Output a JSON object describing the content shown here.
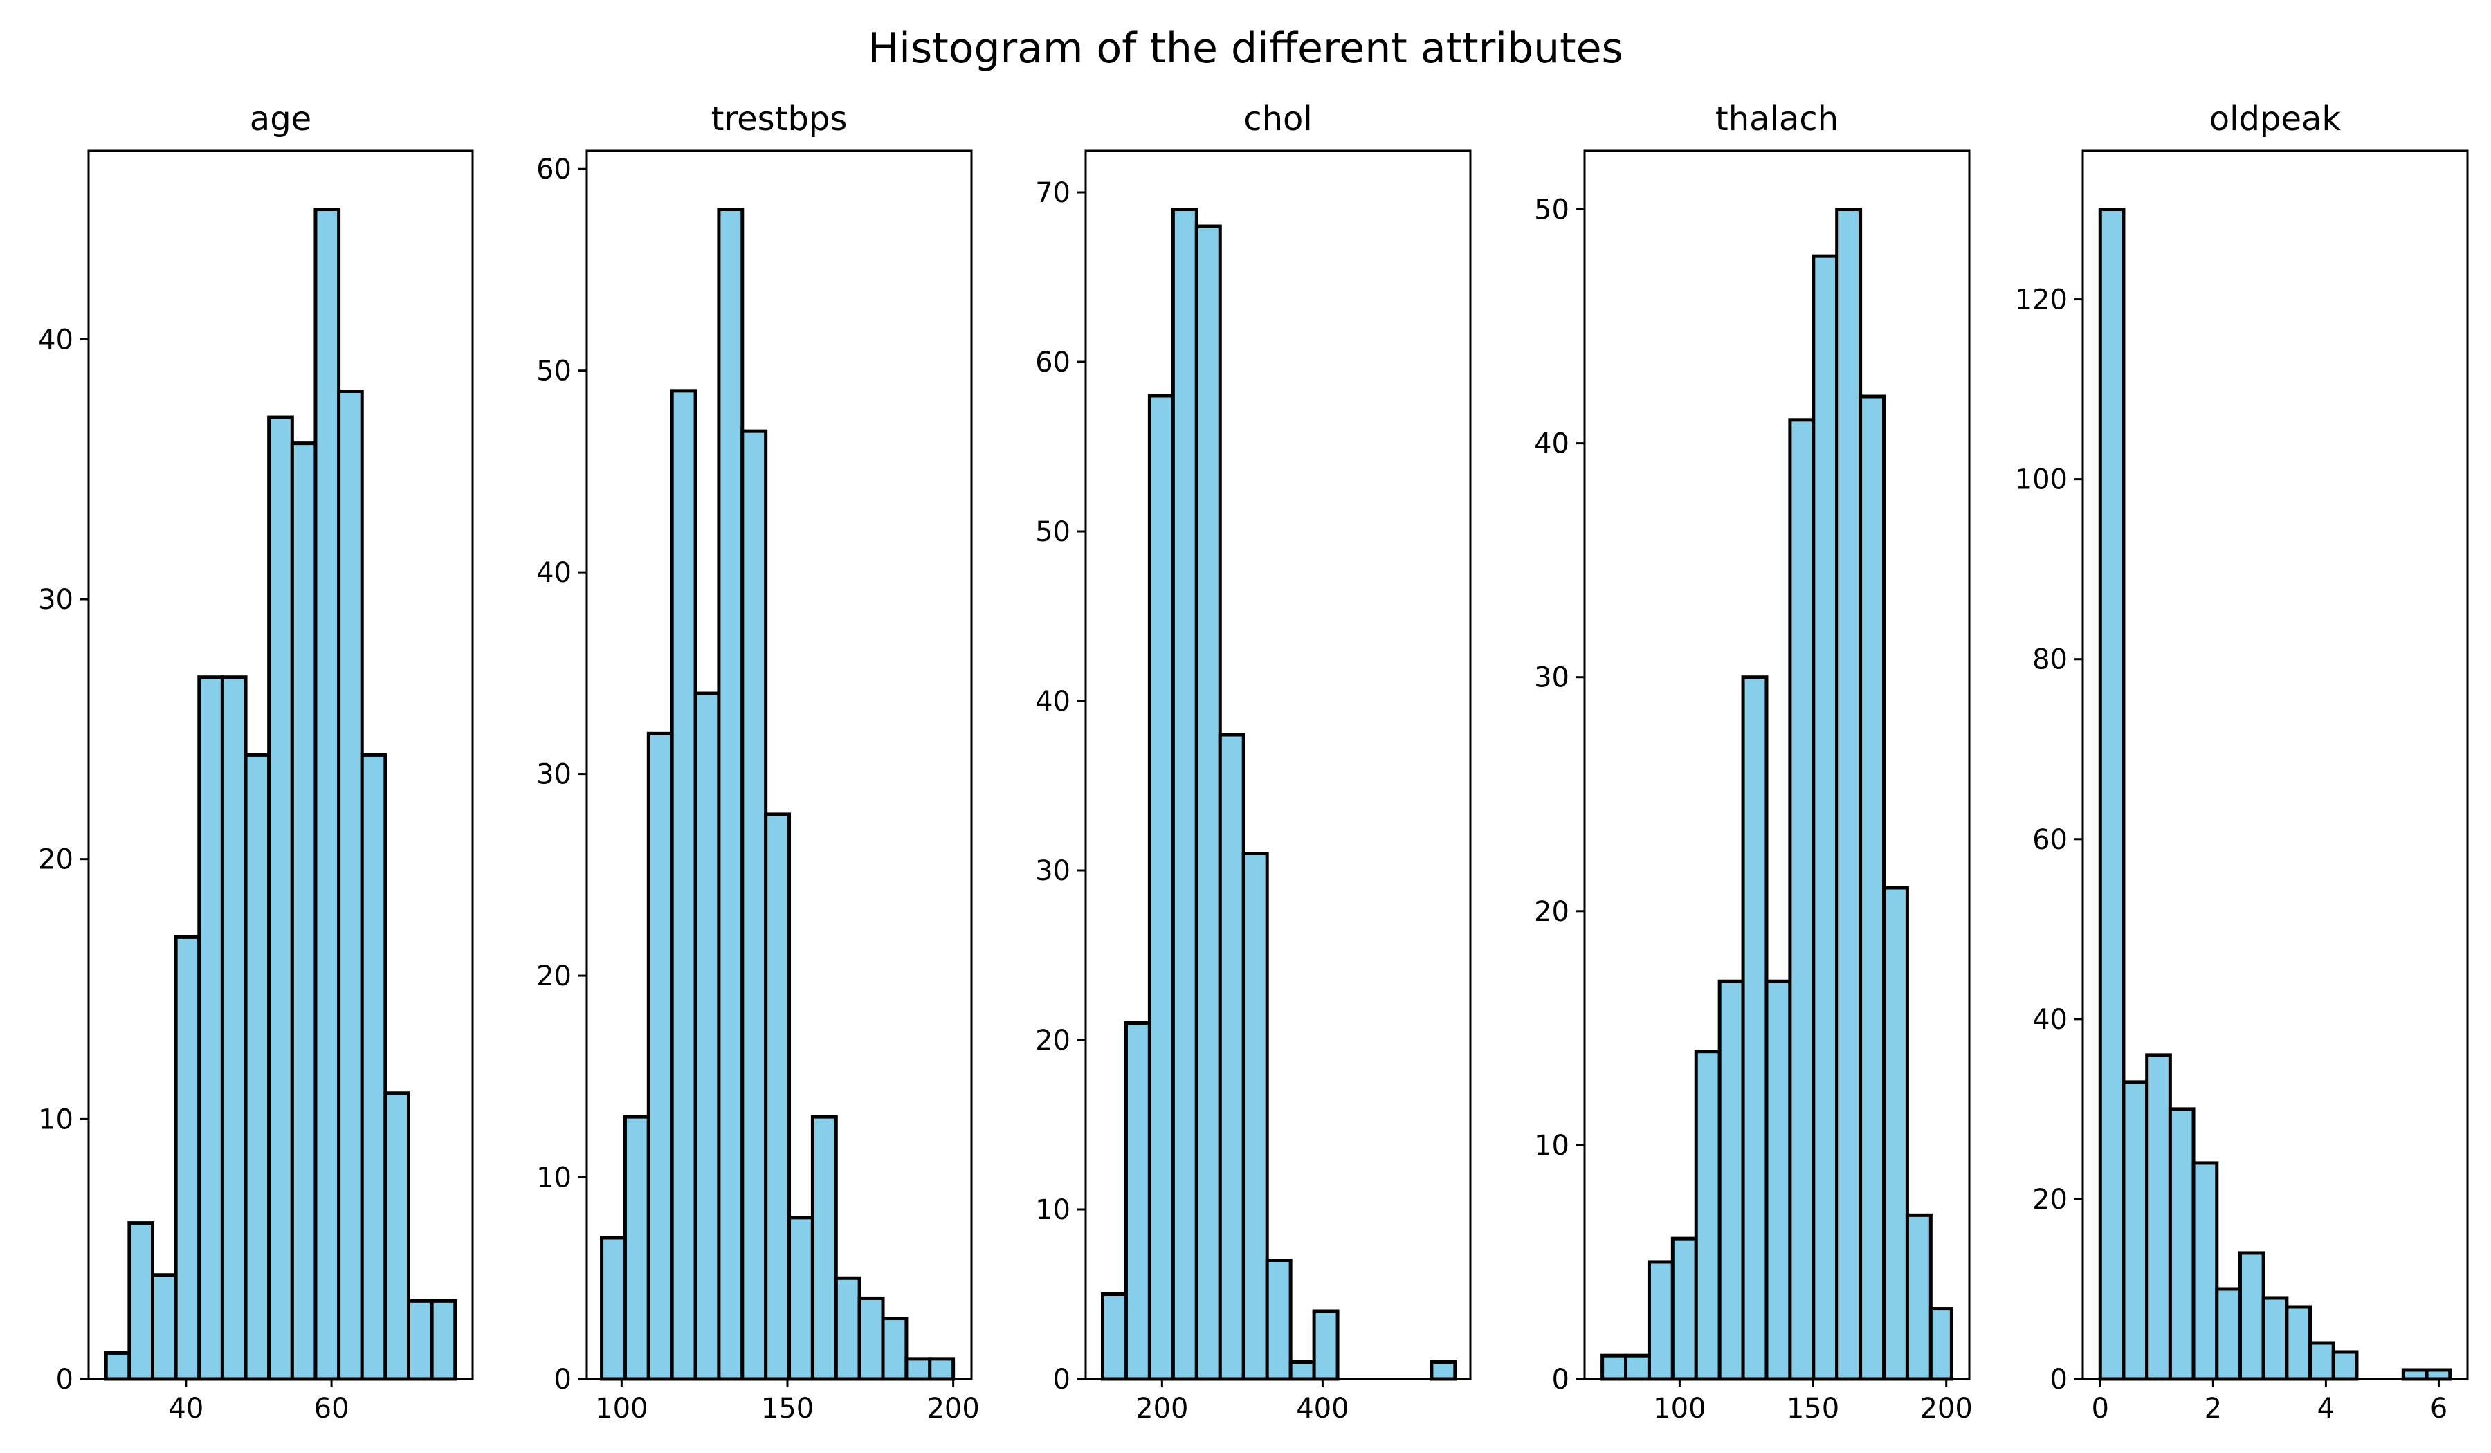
{
  "figure": {
    "title": "Histogram of the different attributes"
  },
  "chart_data": [
    {
      "type": "bar",
      "title": "age",
      "bar_color": "#87CEEB",
      "edge_color": "#000000",
      "xlim": [
        26.6,
        79.4
      ],
      "ylim": [
        0,
        47.25
      ],
      "xticks": [
        40,
        60
      ],
      "yticks": [
        0,
        10,
        20,
        30,
        40
      ],
      "bin_edges": [
        29,
        32.2,
        35.4,
        38.6,
        41.8,
        45,
        48.2,
        51.4,
        54.6,
        57.8,
        61,
        64.2,
        67.4,
        70.6,
        73.8,
        77
      ],
      "values": [
        1,
        6,
        4,
        17,
        27,
        27,
        24,
        37,
        36,
        45,
        38,
        24,
        11,
        3,
        3
      ]
    },
    {
      "type": "bar",
      "title": "trestbps",
      "bar_color": "#87CEEB",
      "edge_color": "#000000",
      "xlim": [
        89.5,
        205.5
      ],
      "ylim": [
        0,
        60.9
      ],
      "xticks": [
        100,
        150,
        200
      ],
      "yticks": [
        0,
        10,
        20,
        30,
        40,
        50,
        60
      ],
      "bin_edges": [
        94,
        101.07,
        108.13,
        115.2,
        122.27,
        129.33,
        136.4,
        143.47,
        150.53,
        157.6,
        164.67,
        171.73,
        178.8,
        185.87,
        192.93,
        200
      ],
      "values": [
        7,
        13,
        32,
        49,
        34,
        58,
        47,
        28,
        8,
        13,
        5,
        4,
        3,
        1,
        1
      ]
    },
    {
      "type": "bar",
      "title": "chol",
      "bar_color": "#87CEEB",
      "edge_color": "#000000",
      "xlim": [
        104.9,
        584.1
      ],
      "ylim": [
        0,
        72.45
      ],
      "xticks": [
        200,
        400
      ],
      "yticks": [
        0,
        10,
        20,
        30,
        40,
        50,
        60,
        70
      ],
      "bin_edges": [
        126,
        155.27,
        184.53,
        213.8,
        243.07,
        272.33,
        301.6,
        330.87,
        360.13,
        389.4,
        418.67,
        447.93,
        477.2,
        506.47,
        535.73,
        565
      ],
      "values": [
        5,
        21,
        58,
        69,
        68,
        38,
        31,
        7,
        1,
        4,
        0,
        0,
        0,
        0,
        1
      ]
    },
    {
      "type": "bar",
      "title": "thalach",
      "bar_color": "#87CEEB",
      "edge_color": "#000000",
      "xlim": [
        64.35,
        208.65
      ],
      "ylim": [
        0,
        52.5
      ],
      "xticks": [
        100,
        150,
        200
      ],
      "yticks": [
        0,
        10,
        20,
        30,
        40,
        50
      ],
      "bin_edges": [
        71,
        79.8,
        88.6,
        97.4,
        106.2,
        115,
        123.8,
        132.6,
        141.4,
        150.2,
        159,
        167.8,
        176.6,
        185.4,
        194.2,
        202
      ],
      "values": [
        1,
        1,
        5,
        6,
        14,
        17,
        30,
        17,
        41,
        48,
        50,
        42,
        21,
        7,
        3
      ]
    },
    {
      "type": "bar",
      "title": "oldpeak",
      "bar_color": "#87CEEB",
      "edge_color": "#000000",
      "xlim": [
        -0.31,
        6.51
      ],
      "ylim": [
        0,
        136.5
      ],
      "xticks": [
        0,
        2,
        4,
        6
      ],
      "yticks": [
        0,
        20,
        40,
        60,
        80,
        100,
        120
      ],
      "bin_edges": [
        0,
        0.413,
        0.827,
        1.24,
        1.653,
        2.067,
        2.48,
        2.893,
        3.307,
        3.72,
        4.133,
        4.547,
        4.96,
        5.373,
        5.787,
        6.2
      ],
      "values": [
        130,
        33,
        36,
        30,
        24,
        10,
        14,
        9,
        8,
        4,
        3,
        0,
        0,
        1,
        1
      ]
    }
  ]
}
